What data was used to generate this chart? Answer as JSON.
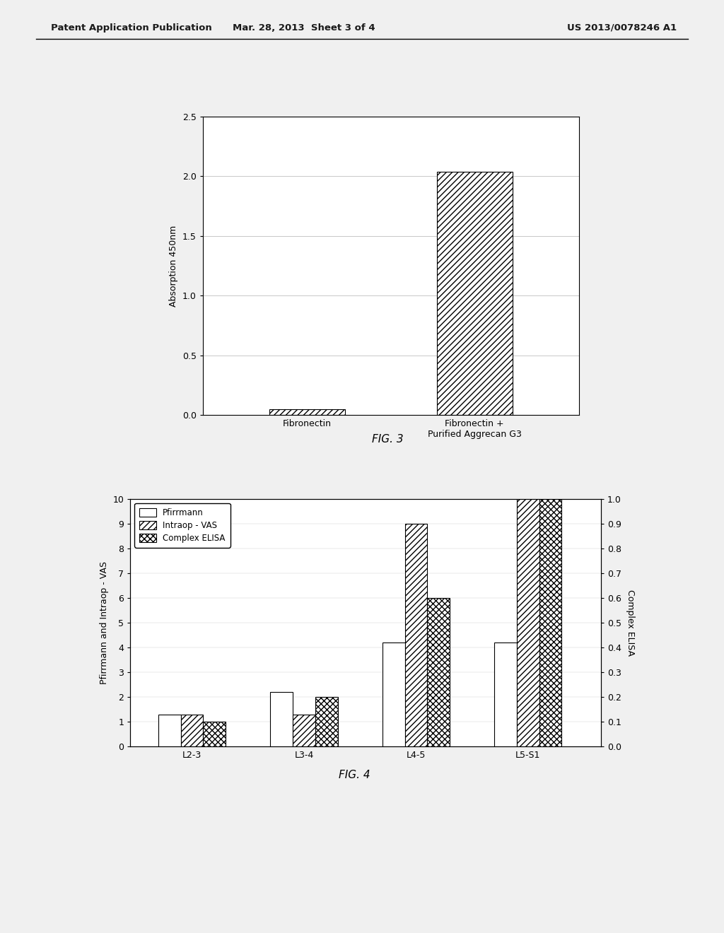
{
  "header_left": "Patent Application Publication",
  "header_mid": "Mar. 28, 2013  Sheet 3 of 4",
  "header_right": "US 2013/0078246 A1",
  "fig3": {
    "categories": [
      "Fibronectin",
      "Fibronectin +\nPurified Aggrecan G3"
    ],
    "values": [
      0.05,
      2.04
    ],
    "ylabel": "Absorption 450nm",
    "ylim": [
      0,
      2.5
    ],
    "yticks": [
      0,
      0.5,
      1.0,
      1.5,
      2.0,
      2.5
    ],
    "caption": "FIG. 3",
    "bar_width": 0.18
  },
  "fig4": {
    "categories": [
      "L2-3",
      "L3-4",
      "L4-5",
      "L5-S1"
    ],
    "pfirrmann": [
      1.3,
      2.2,
      4.2,
      4.2
    ],
    "intraop_vas": [
      1.3,
      1.3,
      9.0,
      10.0
    ],
    "complex_elisa": [
      0.1,
      0.2,
      0.6,
      1.0
    ],
    "ylabel_left": "Pfirrmann and Intraop - VAS",
    "ylabel_right": "Complex ELISA",
    "ylim_left": [
      0,
      10
    ],
    "ylim_right": [
      0,
      1.0
    ],
    "yticks_left": [
      0,
      1,
      2,
      3,
      4,
      5,
      6,
      7,
      8,
      9,
      10
    ],
    "yticks_right": [
      0.0,
      0.1,
      0.2,
      0.3,
      0.4,
      0.5,
      0.6,
      0.7,
      0.8,
      0.9,
      1.0
    ],
    "legend_labels": [
      "Pfirrmann",
      "Intraop - VAS",
      "Complex ELISA"
    ],
    "caption": "FIG. 4",
    "bar_width": 0.2
  },
  "bg_color": "#f5f5f5",
  "text_color": "#1a1a1a",
  "font_size": 10
}
